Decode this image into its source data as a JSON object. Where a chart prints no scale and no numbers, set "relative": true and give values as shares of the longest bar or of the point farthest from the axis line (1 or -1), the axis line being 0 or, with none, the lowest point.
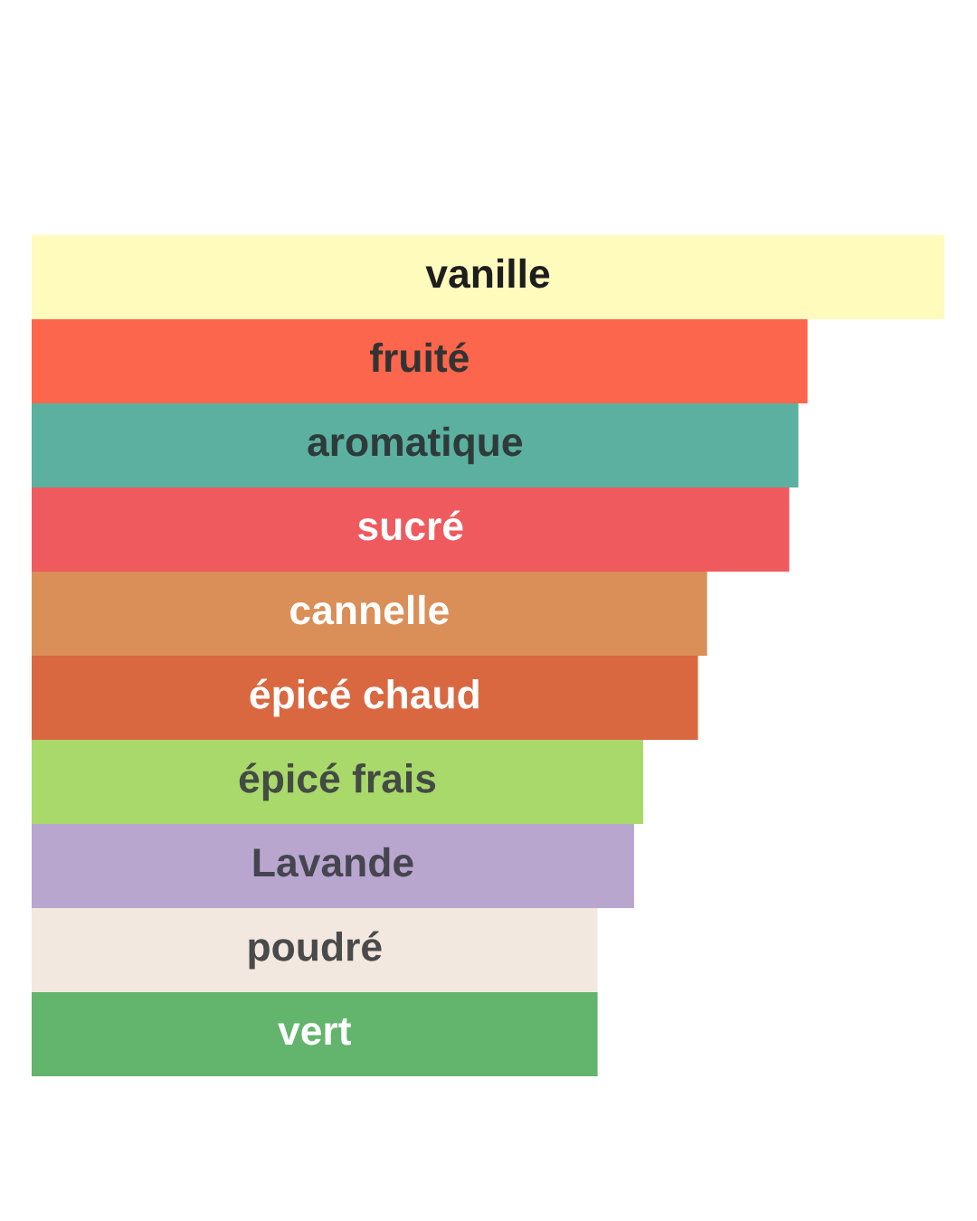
{
  "chart_data": {
    "type": "bar",
    "orientation": "horizontal",
    "relative": true,
    "categories": [
      "vanille",
      "fruité",
      "aromatique",
      "sucré",
      "cannelle",
      "épicé chaud",
      "épicé frais",
      "Lavande",
      "poudré",
      "vert"
    ],
    "values": [
      1,
      0.85,
      0.84,
      0.83,
      0.74,
      0.73,
      0.67,
      0.66,
      0.62,
      0.62
    ],
    "colors": [
      "#fefbbd",
      "#fc664c",
      "#5bb09f",
      "#ef5a5e",
      "#d98f57",
      "#d96841",
      "#a8d96a",
      "#b9a6cf",
      "#f2e8df",
      "#63b46d"
    ]
  }
}
